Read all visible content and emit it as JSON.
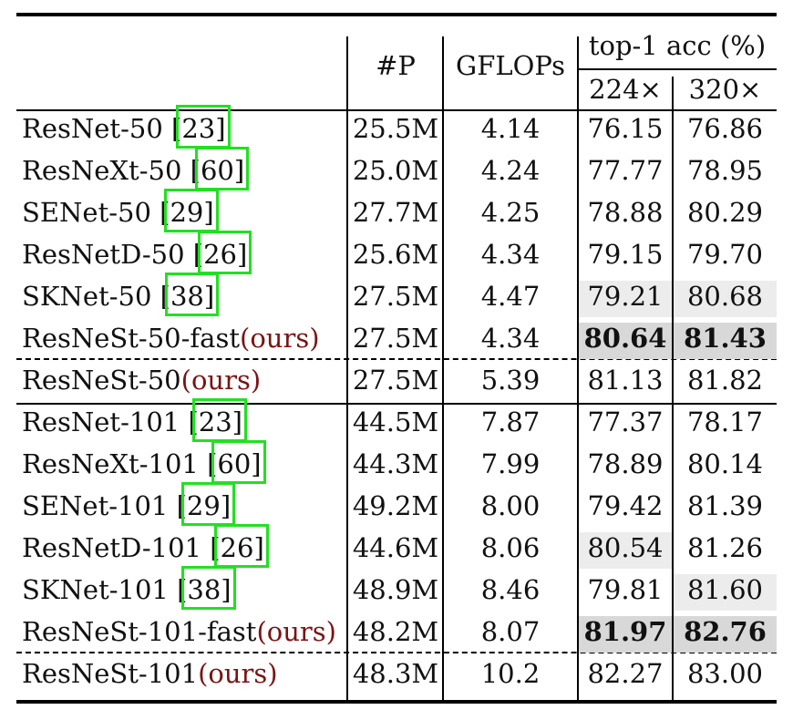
{
  "header": {
    "params": "#P",
    "gflops": "GFLOPs",
    "acc_group": "top-1 acc (%)",
    "res1": "224×",
    "res2": "320×"
  },
  "rows": [
    {
      "name": "ResNet-50 ",
      "cite": "23",
      "ours": "",
      "params": "25.5M",
      "gflops": "4.14",
      "a224": "76.15",
      "a320": "76.86"
    },
    {
      "name": "ResNeXt-50 ",
      "cite": "60",
      "ours": "",
      "params": "25.0M",
      "gflops": "4.24",
      "a224": "77.77",
      "a320": "78.95"
    },
    {
      "name": "SENet-50 ",
      "cite": "29",
      "ours": "",
      "params": "27.7M",
      "gflops": "4.25",
      "a224": "78.88",
      "a320": "80.29"
    },
    {
      "name": "ResNetD-50 ",
      "cite": "26",
      "ours": "",
      "params": "25.6M",
      "gflops": "4.34",
      "a224": "79.15",
      "a320": "79.70"
    },
    {
      "name": "SKNet-50 ",
      "cite": "38",
      "ours": "",
      "params": "27.5M",
      "gflops": "4.47",
      "a224": "79.21",
      "a320": "80.68"
    },
    {
      "name": "ResNeSt-50-fast",
      "cite": "",
      "ours": "(ours)",
      "params": "27.5M",
      "gflops": "4.34",
      "a224": "80.64",
      "a320": "81.43"
    },
    {
      "name": "ResNeSt-50",
      "cite": "",
      "ours": "(ours)",
      "params": "27.5M",
      "gflops": "5.39",
      "a224": "81.13",
      "a320": "81.82"
    },
    {
      "name": "ResNet-101 ",
      "cite": "23",
      "ours": "",
      "params": "44.5M",
      "gflops": "7.87",
      "a224": "77.37",
      "a320": "78.17"
    },
    {
      "name": "ResNeXt-101 ",
      "cite": "60",
      "ours": "",
      "params": "44.3M",
      "gflops": "7.99",
      "a224": "78.89",
      "a320": "80.14"
    },
    {
      "name": "SENet-101 ",
      "cite": "29",
      "ours": "",
      "params": "49.2M",
      "gflops": "8.00",
      "a224": "79.42",
      "a320": "81.39"
    },
    {
      "name": "ResNetD-101 ",
      "cite": "26",
      "ours": "",
      "params": "44.6M",
      "gflops": "8.06",
      "a224": "80.54",
      "a320": "81.26"
    },
    {
      "name": "SKNet-101 ",
      "cite": "38",
      "ours": "",
      "params": "48.9M",
      "gflops": "8.46",
      "a224": "79.81",
      "a320": "81.60"
    },
    {
      "name": "ResNeSt-101-fast",
      "cite": "",
      "ours": "(ours)",
      "params": "48.2M",
      "gflops": "8.07",
      "a224": "81.97",
      "a320": "82.76"
    },
    {
      "name": "ResNeSt-101",
      "cite": "",
      "ours": "(ours)",
      "params": "48.3M",
      "gflops": "10.2",
      "a224": "82.27",
      "a320": "83.00"
    }
  ],
  "colors": {
    "highlight_light": "#ececec",
    "highlight_dark": "#d8d8d8",
    "ours": "#7a1414",
    "citation_box": "#22e022"
  }
}
